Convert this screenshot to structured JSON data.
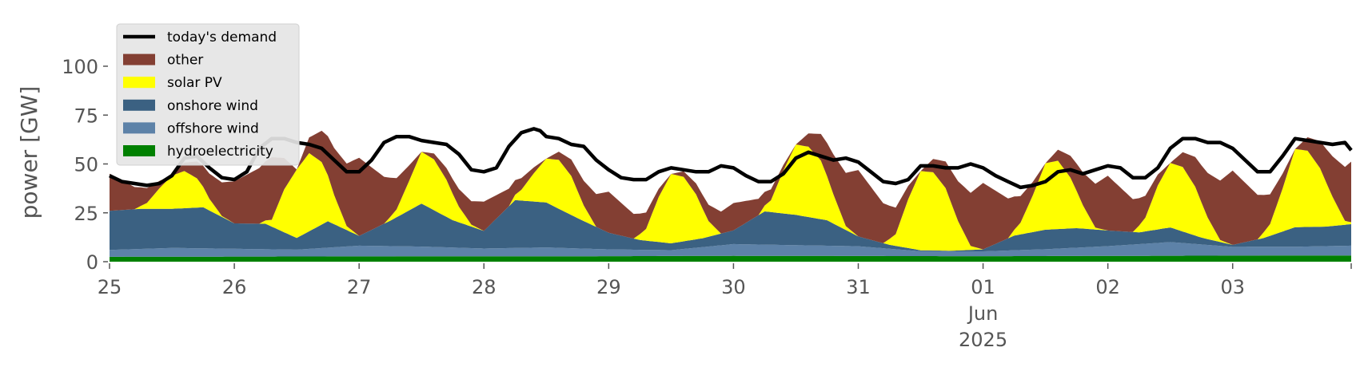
{
  "chart_data": {
    "type": "area",
    "ylabel": "power [GW]",
    "xlabel": "",
    "ylim": [
      0,
      120
    ],
    "xlim": [
      0,
      9.95
    ],
    "y_ticks": [
      0,
      25,
      50,
      75,
      100
    ],
    "x_ticks": [
      {
        "x": 0,
        "lines": [
          "25"
        ]
      },
      {
        "x": 1,
        "lines": [
          "26"
        ]
      },
      {
        "x": 2,
        "lines": [
          "27"
        ]
      },
      {
        "x": 3,
        "lines": [
          "28"
        ]
      },
      {
        "x": 4,
        "lines": [
          "29"
        ]
      },
      {
        "x": 5,
        "lines": [
          "30"
        ]
      },
      {
        "x": 6,
        "lines": [
          "31"
        ]
      },
      {
        "x": 7,
        "lines": [
          "01",
          "Jun",
          "2025"
        ]
      },
      {
        "x": 8,
        "lines": [
          "02"
        ]
      },
      {
        "x": 9,
        "lines": [
          "03"
        ]
      }
    ],
    "x_unit": "days",
    "grid": false,
    "legend_position": "top-left",
    "stacked": true,
    "stack_order": [
      "hydroelectricity",
      "offshore wind",
      "onshore wind",
      "solar PV",
      "other"
    ],
    "series": [
      {
        "name": "hydroelectricity",
        "color": "#008000",
        "x": [
          0,
          2,
          4,
          5,
          7,
          9,
          9.95
        ],
        "values": [
          2.5,
          2.7,
          2.8,
          3.0,
          2.8,
          3.1,
          3.2
        ]
      },
      {
        "name": "offshore wind",
        "color": "#5d82a8",
        "x": [
          0,
          0.5,
          1,
          1.5,
          2,
          2.5,
          3,
          3.5,
          4,
          4.5,
          5,
          5.5,
          6,
          6.5,
          7,
          7.5,
          8,
          8.5,
          9,
          9.5,
          9.95
        ],
        "values": [
          3.5,
          4.5,
          4.0,
          3.5,
          5.5,
          5.0,
          4.0,
          4.5,
          3.5,
          3.0,
          6.0,
          5.5,
          5.0,
          2.5,
          2.5,
          3.5,
          5.0,
          7.0,
          4.5,
          4.5,
          5.0
        ]
      },
      {
        "name": "onshore wind",
        "color": "#3b6182",
        "x": [
          0,
          0.25,
          0.5,
          0.75,
          1,
          1.25,
          1.5,
          1.75,
          2,
          2.25,
          2.5,
          2.75,
          3,
          3.25,
          3.5,
          3.75,
          4,
          4.25,
          4.5,
          4.75,
          5,
          5.25,
          5.5,
          5.75,
          6,
          6.25,
          6.5,
          6.75,
          7,
          7.25,
          7.5,
          7.75,
          8,
          8.25,
          8.5,
          8.75,
          9,
          9.25,
          9.5,
          9.75,
          9.95
        ],
        "values": [
          20,
          20.5,
          20,
          21,
          13,
          13,
          6,
          13.5,
          5,
          13,
          22,
          14,
          9,
          24.5,
          23,
          15.5,
          8.5,
          5,
          3.5,
          4.5,
          7,
          17,
          15.5,
          13,
          5,
          2,
          0.5,
          0.3,
          1,
          7.5,
          10,
          10,
          8,
          6,
          7.5,
          3.5,
          1,
          4.5,
          10,
          10,
          11
        ]
      },
      {
        "name": "solar PV",
        "color": "#ffff00",
        "x": [
          0,
          0.1,
          0.2,
          0.3,
          0.4,
          0.5,
          0.6,
          0.7,
          0.8,
          0.9,
          1,
          1.1,
          1.2,
          1.3,
          1.4,
          1.5,
          1.6,
          1.7,
          1.8,
          1.9,
          2,
          2.1,
          2.2,
          2.3,
          2.4,
          2.5,
          2.6,
          2.7,
          2.8,
          2.9,
          3,
          3.1,
          3.2,
          3.3,
          3.4,
          3.5,
          3.6,
          3.7,
          3.8,
          3.9,
          4,
          4.1,
          4.2,
          4.3,
          4.4,
          4.5,
          4.6,
          4.7,
          4.8,
          4.9,
          5,
          5.1,
          5.2,
          5.3,
          5.4,
          5.5,
          5.6,
          5.7,
          5.8,
          5.9,
          6,
          6.1,
          6.2,
          6.3,
          6.4,
          6.5,
          6.6,
          6.7,
          6.8,
          6.9,
          7,
          7.1,
          7.2,
          7.3,
          7.4,
          7.5,
          7.6,
          7.7,
          7.8,
          7.9,
          8,
          8.1,
          8.2,
          8.3,
          8.4,
          8.5,
          8.6,
          8.7,
          8.8,
          8.9,
          9,
          9.1,
          9.2,
          9.3,
          9.4,
          9.5,
          9.6,
          9.7,
          9.8,
          9.9,
          9.95
        ],
        "values": [
          0,
          0,
          0,
          3.0,
          10.5,
          17,
          19,
          15,
          6,
          0.5,
          0,
          0,
          0,
          3.5,
          22,
          35,
          40,
          32,
          15,
          2,
          0,
          0,
          0,
          4,
          15,
          26.5,
          26,
          19,
          8,
          1,
          0,
          0,
          0,
          5.5,
          14.5,
          22.5,
          25,
          20,
          8,
          0,
          0,
          0,
          0,
          6,
          23,
          35.5,
          33,
          23,
          8,
          0,
          0,
          0,
          0,
          6,
          22,
          36,
          36,
          30,
          15,
          2,
          0,
          0,
          0,
          6,
          25,
          40.5,
          40,
          32,
          15,
          2,
          0,
          0,
          0,
          6,
          19,
          34,
          35,
          26,
          12,
          1,
          0,
          0,
          0,
          7,
          22.5,
          33,
          33,
          25,
          11,
          1,
          0,
          0,
          0,
          6,
          22,
          40,
          39,
          30,
          15,
          2,
          1
        ]
      },
      {
        "name": "other",
        "color": "#833f33",
        "x": [
          0,
          0.5,
          1,
          1.3,
          1.5,
          2,
          2.5,
          3,
          3.5,
          4,
          4.5,
          5,
          5.5,
          6,
          6.5,
          7,
          7.5,
          8,
          8.5,
          9,
          9.5,
          9.95
        ],
        "values": [
          19,
          0,
          21.5,
          32,
          0,
          40,
          0,
          15,
          0,
          21,
          0,
          14,
          0,
          34,
          0,
          34,
          0,
          28,
          0,
          38,
          0,
          31
        ]
      },
      {
        "name": "today's demand",
        "color": "#000000",
        "kind": "line",
        "x": [
          0,
          0.1,
          0.2,
          0.3,
          0.4,
          0.45,
          0.5,
          0.6,
          0.7,
          0.8,
          0.9,
          1.0,
          1.1,
          1.2,
          1.3,
          1.4,
          1.5,
          1.6,
          1.7,
          1.8,
          1.9,
          2.0,
          2.1,
          2.2,
          2.3,
          2.4,
          2.5,
          2.6,
          2.7,
          2.8,
          2.9,
          3.0,
          3.1,
          3.2,
          3.3,
          3.4,
          3.45,
          3.5,
          3.6,
          3.7,
          3.8,
          3.9,
          4.0,
          4.1,
          4.2,
          4.3,
          4.4,
          4.5,
          4.6,
          4.7,
          4.8,
          4.9,
          5.0,
          5.1,
          5.2,
          5.3,
          5.4,
          5.5,
          5.6,
          5.7,
          5.8,
          5.9,
          6.0,
          6.1,
          6.2,
          6.3,
          6.4,
          6.5,
          6.6,
          6.7,
          6.8,
          6.9,
          7.0,
          7.1,
          7.2,
          7.3,
          7.4,
          7.5,
          7.6,
          7.7,
          7.8,
          7.9,
          8.0,
          8.1,
          8.2,
          8.3,
          8.4,
          8.5,
          8.6,
          8.7,
          8.8,
          8.9,
          9.0,
          9.1,
          9.2,
          9.3,
          9.4,
          9.5,
          9.6,
          9.7,
          9.8,
          9.9,
          9.95
        ],
        "values": [
          44,
          41,
          40,
          39,
          40,
          42,
          44,
          53,
          54,
          48,
          43,
          42,
          46,
          58,
          63,
          63,
          61,
          60,
          58,
          52,
          46,
          46,
          52,
          61,
          64,
          64,
          62,
          61,
          60,
          55,
          47,
          46,
          48,
          59,
          66,
          68,
          67,
          64,
          63,
          60,
          59,
          52,
          47,
          43,
          42,
          42,
          46,
          48,
          47,
          46,
          46,
          49,
          48,
          44,
          41,
          41,
          45,
          53,
          56,
          54,
          52,
          53,
          51,
          46,
          41,
          40,
          42,
          49,
          49,
          48,
          48,
          50,
          48,
          44,
          41,
          38,
          39,
          41,
          46,
          47,
          45,
          47,
          49,
          48,
          43,
          43,
          48,
          58,
          63,
          63,
          61,
          61,
          58,
          52,
          46,
          46,
          54,
          63,
          62,
          61,
          60,
          61,
          57
        ]
      }
    ]
  }
}
